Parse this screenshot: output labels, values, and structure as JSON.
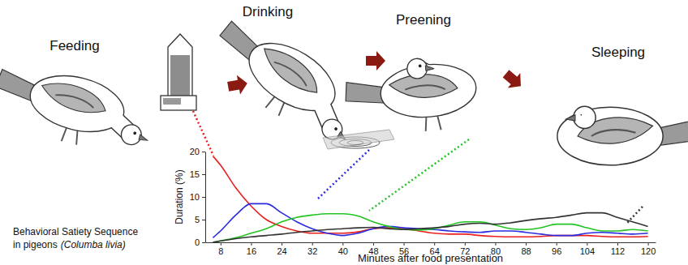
{
  "chart_data": {
    "type": "line",
    "x_label": "Minutes after food presentation",
    "y_label": "Duration (%)",
    "x": [
      6,
      8,
      12,
      16,
      20,
      24,
      28,
      32,
      36,
      40,
      44,
      48,
      52,
      56,
      60,
      64,
      68,
      72,
      76,
      80,
      84,
      88,
      92,
      96,
      100,
      104,
      108,
      112,
      116,
      120
    ],
    "series": [
      {
        "name": "Feeding",
        "color": "#e8201d",
        "values": [
          19,
          17,
          12,
          8,
          5,
          3.5,
          2.5,
          2,
          2,
          2,
          2.3,
          3,
          3.2,
          3,
          2.5,
          2,
          1.8,
          1.8,
          1.5,
          1.3,
          1.2,
          1.2,
          1.3,
          1.5,
          1.5,
          1.5,
          1.3,
          1.2,
          1.2,
          1.3
        ]
      },
      {
        "name": "Drinking",
        "color": "#2b2be0",
        "values": [
          1,
          2.5,
          6,
          8.5,
          8.5,
          6.5,
          4.5,
          3,
          2,
          1.5,
          2,
          3,
          3.5,
          3.2,
          3,
          2.8,
          2.5,
          2.3,
          2.2,
          2.5,
          2.5,
          2.2,
          1.8,
          1.5,
          1.5,
          2,
          2.2,
          2,
          1.8,
          2
        ]
      },
      {
        "name": "Preening",
        "color": "#22c322",
        "values": [
          0,
          0.3,
          1,
          2,
          3,
          4.5,
          5.5,
          6,
          6.3,
          6.3,
          5.8,
          4.5,
          3.5,
          2.8,
          2.7,
          3,
          3.8,
          4.5,
          4.5,
          3.8,
          3,
          2.8,
          3.2,
          4,
          4,
          3.2,
          2.5,
          2.5,
          2.8,
          2.5
        ]
      },
      {
        "name": "Sleeping",
        "color": "#333333",
        "values": [
          0,
          0.3,
          0.8,
          1.2,
          1.5,
          1.8,
          2.2,
          2.5,
          2.8,
          3,
          3.2,
          3.3,
          3,
          2.8,
          3,
          3.2,
          3.5,
          4,
          4.2,
          4,
          4.3,
          4.8,
          5.2,
          5.5,
          6,
          6.5,
          6.5,
          5.5,
          4.5,
          3.5
        ]
      }
    ],
    "xlim": [
      4,
      122
    ],
    "ylim": [
      0,
      20
    ],
    "xticks": [
      8,
      16,
      24,
      32,
      40,
      48,
      56,
      64,
      72,
      80,
      88,
      96,
      104,
      112,
      120
    ],
    "yticks": [
      0,
      5,
      10,
      15,
      20
    ],
    "grid": false,
    "annotations": [
      "Behavioral Satiety Sequence",
      "in pigeons",
      "(Columba livia)"
    ]
  }
}
